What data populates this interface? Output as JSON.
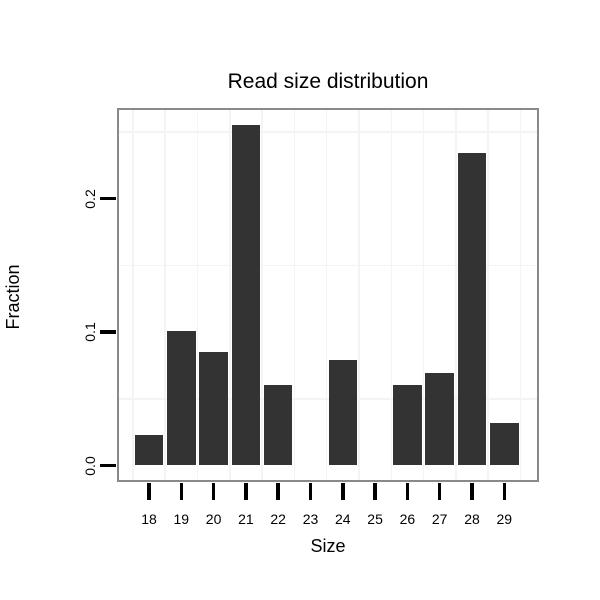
{
  "chart_data": {
    "type": "bar",
    "title": "Read size distribution",
    "xlabel": "Size",
    "ylabel": "Fraction",
    "categories": [
      "18",
      "19",
      "20",
      "21",
      "22",
      "23",
      "24",
      "25",
      "26",
      "27",
      "28",
      "29"
    ],
    "values": [
      0.023,
      0.101,
      0.085,
      0.255,
      0.06,
      0,
      0.079,
      0,
      0.06,
      0.069,
      0.234,
      0.032
    ],
    "yticks": [
      0.0,
      0.1,
      0.2
    ],
    "ytick_labels": [
      "0.0",
      "0.1",
      "0.2"
    ],
    "ylim": [
      0,
      0.27
    ],
    "grid_h_lines": [
      0.05,
      0.15,
      0.25
    ],
    "grid_v_boundaries": true,
    "legend": "none",
    "bar_color": "#333333",
    "panel_border_color": "#898989",
    "gridline_color": "#f4f4f4",
    "tick_color": "#000000",
    "text_color": "#000000",
    "background_color": "#ffffff"
  }
}
